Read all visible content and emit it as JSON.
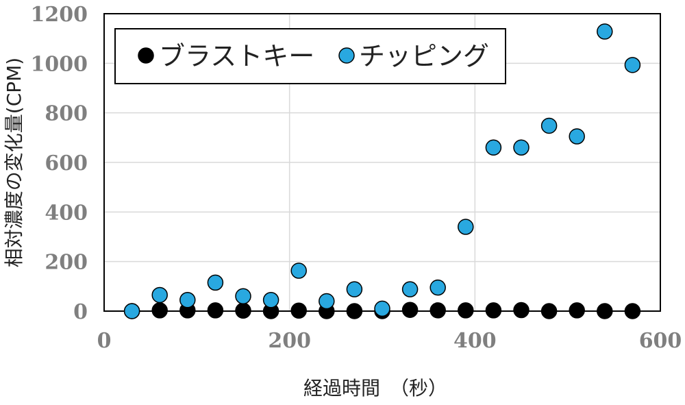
{
  "chart_data": {
    "type": "scatter",
    "xlabel": "経過時間　（秒）",
    "ylabel": "相対濃度の変化量(CPM)",
    "xlim": [
      0,
      600
    ],
    "ylim": [
      0,
      1200
    ],
    "xticks": [
      "0",
      "200",
      "400",
      "600"
    ],
    "yticks": [
      "0",
      "200",
      "400",
      "600",
      "800",
      "1000",
      "1200"
    ],
    "grid": true,
    "legend_position": "top-left",
    "series": [
      {
        "name": "ブラストキー",
        "color": "#000000",
        "x": [
          30,
          60,
          90,
          120,
          150,
          180,
          210,
          240,
          270,
          300,
          330,
          360,
          390,
          420,
          450,
          480,
          510,
          540,
          570
        ],
        "y": [
          0,
          3,
          3,
          3,
          2,
          0,
          2,
          0,
          0,
          0,
          5,
          3,
          3,
          3,
          4,
          0,
          3,
          0,
          0
        ]
      },
      {
        "name": "チッピング",
        "color": "#29a8e0",
        "x": [
          30,
          60,
          90,
          120,
          150,
          180,
          210,
          240,
          270,
          300,
          330,
          360,
          390,
          420,
          450,
          480,
          510,
          540,
          570
        ],
        "y": [
          0,
          65,
          45,
          115,
          60,
          45,
          163,
          40,
          88,
          10,
          88,
          95,
          340,
          660,
          660,
          748,
          705,
          1128,
          993
        ]
      }
    ]
  }
}
